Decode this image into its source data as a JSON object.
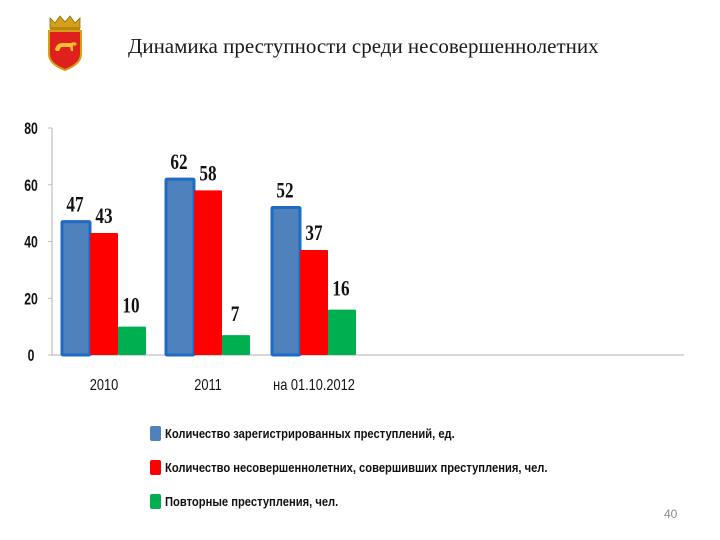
{
  "header": {
    "title": "Динамика преступности среди несовершеннолетних",
    "emblem_icon": "city-coat-of-arms-emblem-icon"
  },
  "page_number": "40",
  "chart_data": {
    "type": "bar",
    "title": "",
    "xlabel": "",
    "ylabel": "",
    "ylim": [
      0,
      80
    ],
    "yticks": [
      0,
      20,
      40,
      60,
      80
    ],
    "grid": false,
    "legend_position": "bottom",
    "categories": [
      "2010",
      "2011",
      "на 01.10.2012"
    ],
    "series": [
      {
        "name": "Количество зарегистрированных преступлений, ед.",
        "values": [
          47,
          62,
          52
        ],
        "color": "#4f81bd",
        "border": "#1f6bc4"
      },
      {
        "name": "Количество несовершеннолетних, совершивших преступления, чел.",
        "values": [
          43,
          58,
          37
        ],
        "color": "#ff0000",
        "border": "#ff0000"
      },
      {
        "name": "Повторные преступления, чел.",
        "values": [
          10,
          7,
          16
        ],
        "color": "#00b050",
        "border": "#00b050"
      }
    ]
  }
}
